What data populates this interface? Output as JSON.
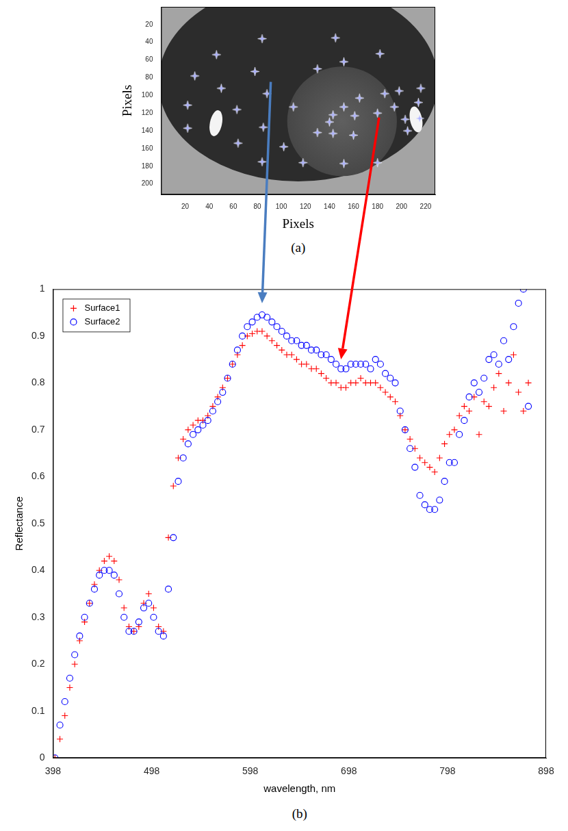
{
  "chart_data": [
    {
      "type": "scatter",
      "caption": "(a)",
      "x_label": "Pixels",
      "y_label": "Pixels",
      "xlim": [
        0,
        228
      ],
      "ylim": [
        212,
        0
      ],
      "xticks": [
        20,
        40,
        60,
        80,
        100,
        120,
        140,
        160,
        180,
        200,
        220
      ],
      "yticks": [
        20,
        40,
        60,
        80,
        100,
        120,
        140,
        160,
        180,
        200
      ],
      "grid": false,
      "marker": "star",
      "color": "#aab0ff",
      "x": [
        84,
        145,
        46,
        182,
        152,
        28,
        78,
        130,
        50,
        88,
        216,
        186,
        198,
        165,
        22,
        63,
        110,
        152,
        194,
        214,
        143,
        161,
        180,
        140,
        203,
        22,
        85,
        130,
        143,
        160,
        205,
        215,
        64,
        102,
        84,
        118,
        152,
        180
      ],
      "values": [
        36,
        35,
        54,
        53,
        62,
        78,
        73,
        70,
        92,
        98,
        92,
        98,
        95,
        103,
        111,
        116,
        113,
        113,
        113,
        108,
        122,
        123,
        120,
        130,
        127,
        137,
        136,
        142,
        143,
        145,
        140,
        126,
        154,
        158,
        175,
        176,
        177,
        176
      ]
    },
    {
      "type": "scatter",
      "caption": "(b)",
      "x_label": "wavelength, nm",
      "y_label": "Reflectance",
      "xlim": [
        398,
        898
      ],
      "ylim": [
        0,
        1
      ],
      "xticks": [
        398,
        498,
        598,
        698,
        798,
        898
      ],
      "yticks": [
        0,
        0.1,
        0.2,
        0.3,
        0.4,
        0.5,
        0.6,
        0.7,
        0.8,
        0.9,
        1
      ],
      "grid": false,
      "legend": "upper left",
      "x": [
        400,
        405,
        410,
        415,
        420,
        425,
        430,
        435,
        440,
        445,
        450,
        455,
        460,
        465,
        470,
        475,
        480,
        485,
        490,
        495,
        500,
        505,
        510,
        515,
        520,
        525,
        530,
        535,
        540,
        545,
        550,
        555,
        560,
        565,
        570,
        575,
        580,
        585,
        590,
        595,
        600,
        605,
        610,
        615,
        620,
        625,
        630,
        635,
        640,
        645,
        650,
        655,
        660,
        665,
        670,
        675,
        680,
        685,
        690,
        695,
        700,
        705,
        710,
        715,
        720,
        725,
        730,
        735,
        740,
        745,
        750,
        755,
        760,
        765,
        770,
        775,
        780,
        785,
        790,
        795,
        800,
        805,
        810,
        815,
        820,
        825,
        830,
        835,
        840,
        845,
        850,
        855,
        860,
        865,
        870,
        875,
        880
      ],
      "series": [
        {
          "name": "Surface1",
          "color": "#ff0000",
          "marker": "plus",
          "values": [
            0.0,
            0.04,
            0.09,
            0.15,
            0.2,
            0.25,
            0.29,
            0.33,
            0.37,
            0.4,
            0.42,
            0.43,
            0.42,
            0.38,
            0.32,
            0.28,
            0.27,
            0.28,
            0.33,
            0.35,
            0.32,
            0.28,
            0.27,
            0.47,
            0.58,
            0.64,
            0.68,
            0.7,
            0.71,
            0.72,
            0.72,
            0.73,
            0.75,
            0.77,
            0.79,
            0.81,
            0.84,
            0.86,
            0.88,
            0.9,
            0.905,
            0.91,
            0.91,
            0.9,
            0.89,
            0.88,
            0.87,
            0.86,
            0.86,
            0.85,
            0.84,
            0.84,
            0.83,
            0.83,
            0.82,
            0.81,
            0.8,
            0.8,
            0.79,
            0.79,
            0.8,
            0.8,
            0.81,
            0.8,
            0.8,
            0.8,
            0.79,
            0.78,
            0.77,
            0.76,
            0.73,
            0.7,
            0.68,
            0.66,
            0.64,
            0.63,
            0.62,
            0.61,
            0.64,
            0.67,
            0.69,
            0.7,
            0.73,
            0.75,
            0.74,
            0.77,
            0.69,
            0.76,
            0.75,
            0.79,
            0.82,
            0.74,
            0.8,
            0.86,
            0.78,
            0.74,
            0.8
          ]
        },
        {
          "name": "Surface2",
          "color": "#0000ff",
          "marker": "circle",
          "values": [
            0.0,
            0.07,
            0.12,
            0.17,
            0.22,
            0.26,
            0.3,
            0.33,
            0.36,
            0.39,
            0.4,
            0.4,
            0.39,
            0.35,
            0.3,
            0.27,
            0.27,
            0.29,
            0.32,
            0.33,
            0.3,
            0.27,
            0.26,
            0.36,
            0.47,
            0.59,
            0.64,
            0.67,
            0.69,
            0.7,
            0.71,
            0.72,
            0.74,
            0.76,
            0.78,
            0.81,
            0.84,
            0.87,
            0.9,
            0.92,
            0.93,
            0.94,
            0.945,
            0.94,
            0.93,
            0.92,
            0.91,
            0.9,
            0.89,
            0.89,
            0.88,
            0.88,
            0.87,
            0.87,
            0.86,
            0.86,
            0.85,
            0.84,
            0.83,
            0.83,
            0.84,
            0.84,
            0.84,
            0.84,
            0.83,
            0.85,
            0.84,
            0.82,
            0.81,
            0.8,
            0.74,
            0.7,
            0.66,
            0.62,
            0.56,
            0.54,
            0.53,
            0.53,
            0.55,
            0.59,
            0.63,
            0.63,
            0.69,
            0.72,
            0.77,
            0.8,
            0.78,
            0.81,
            0.85,
            0.86,
            0.84,
            0.89,
            0.85,
            0.92,
            0.97,
            1.0,
            0.75
          ]
        }
      ]
    }
  ]
}
